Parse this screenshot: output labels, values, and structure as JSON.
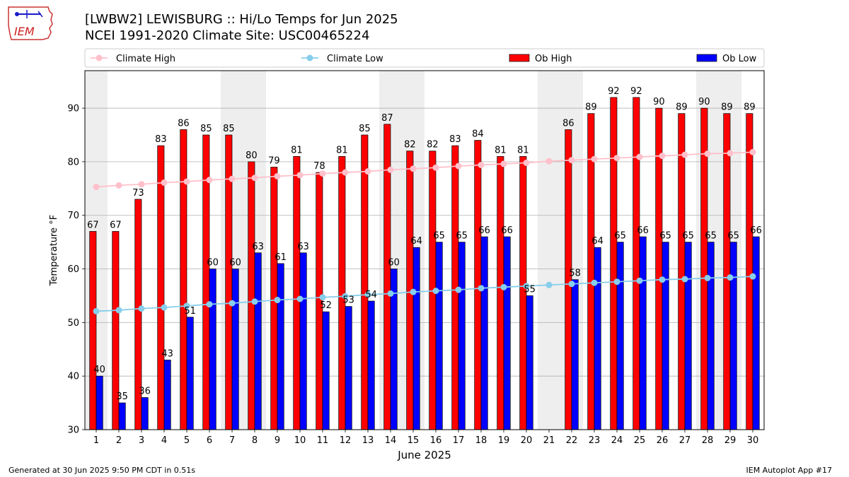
{
  "header": {
    "title_line1": "[LWBW2] LEWISBURG :: Hi/Lo Temps for Jun 2025",
    "title_line2": "NCEI 1991-2020 Climate Site: USC00465224",
    "logo_text": "IEM"
  },
  "footer": {
    "left": "Generated at 30 Jun 2025 9:50 PM CDT in 0.51s",
    "right": "IEM Autoplot App #17"
  },
  "colors": {
    "ob_high": "#ff0000",
    "ob_low": "#0000ff",
    "climate_high": "#ffc0cb",
    "climate_low": "#87ceeb",
    "weekend_shade": "#eeeeee",
    "grid": "#b0b0b0"
  },
  "chart_data": {
    "type": "bar",
    "xlabel": "June 2025",
    "ylabel": "Temperature °F",
    "ylim": [
      30,
      97
    ],
    "yticks": [
      30,
      40,
      50,
      60,
      70,
      80,
      90
    ],
    "grid": "horizontal",
    "legend_placement": "top",
    "categories": [
      1,
      2,
      3,
      4,
      5,
      6,
      7,
      8,
      9,
      10,
      11,
      12,
      13,
      14,
      15,
      16,
      17,
      18,
      19,
      20,
      21,
      22,
      23,
      24,
      25,
      26,
      27,
      28,
      29,
      30
    ],
    "shaded_days": [
      1,
      7,
      8,
      14,
      15,
      21,
      22,
      28,
      29
    ],
    "series": [
      {
        "name": "Ob High",
        "kind": "bar",
        "values": [
          67,
          67,
          73,
          83,
          86,
          85,
          85,
          80,
          79,
          81,
          78,
          81,
          85,
          87,
          82,
          82,
          83,
          84,
          81,
          81,
          null,
          86,
          89,
          92,
          92,
          90,
          89,
          90,
          89,
          89
        ]
      },
      {
        "name": "Ob Low",
        "kind": "bar",
        "values": [
          40,
          35,
          36,
          43,
          51,
          60,
          60,
          63,
          61,
          63,
          52,
          53,
          54,
          60,
          64,
          65,
          65,
          66,
          66,
          55,
          null,
          58,
          64,
          65,
          66,
          65,
          65,
          65,
          65,
          66
        ]
      },
      {
        "name": "Climate High",
        "kind": "line",
        "values": [
          75.3,
          75.6,
          75.8,
          76.1,
          76.3,
          76.6,
          76.8,
          77.0,
          77.3,
          77.5,
          77.8,
          78.0,
          78.2,
          78.5,
          78.7,
          78.9,
          79.2,
          79.4,
          79.6,
          79.8,
          80.1,
          80.3,
          80.5,
          80.7,
          80.9,
          81.1,
          81.3,
          81.5,
          81.6,
          81.8
        ]
      },
      {
        "name": "Climate Low",
        "kind": "line",
        "values": [
          52.1,
          52.3,
          52.6,
          52.8,
          53.1,
          53.4,
          53.6,
          53.9,
          54.2,
          54.4,
          54.7,
          54.9,
          55.2,
          55.4,
          55.7,
          55.9,
          56.1,
          56.4,
          56.6,
          56.8,
          57.0,
          57.2,
          57.4,
          57.6,
          57.8,
          58.0,
          58.1,
          58.3,
          58.4,
          58.6
        ]
      }
    ],
    "legend_order": [
      "Climate High",
      "Climate Low",
      "Ob High",
      "Ob Low"
    ]
  }
}
